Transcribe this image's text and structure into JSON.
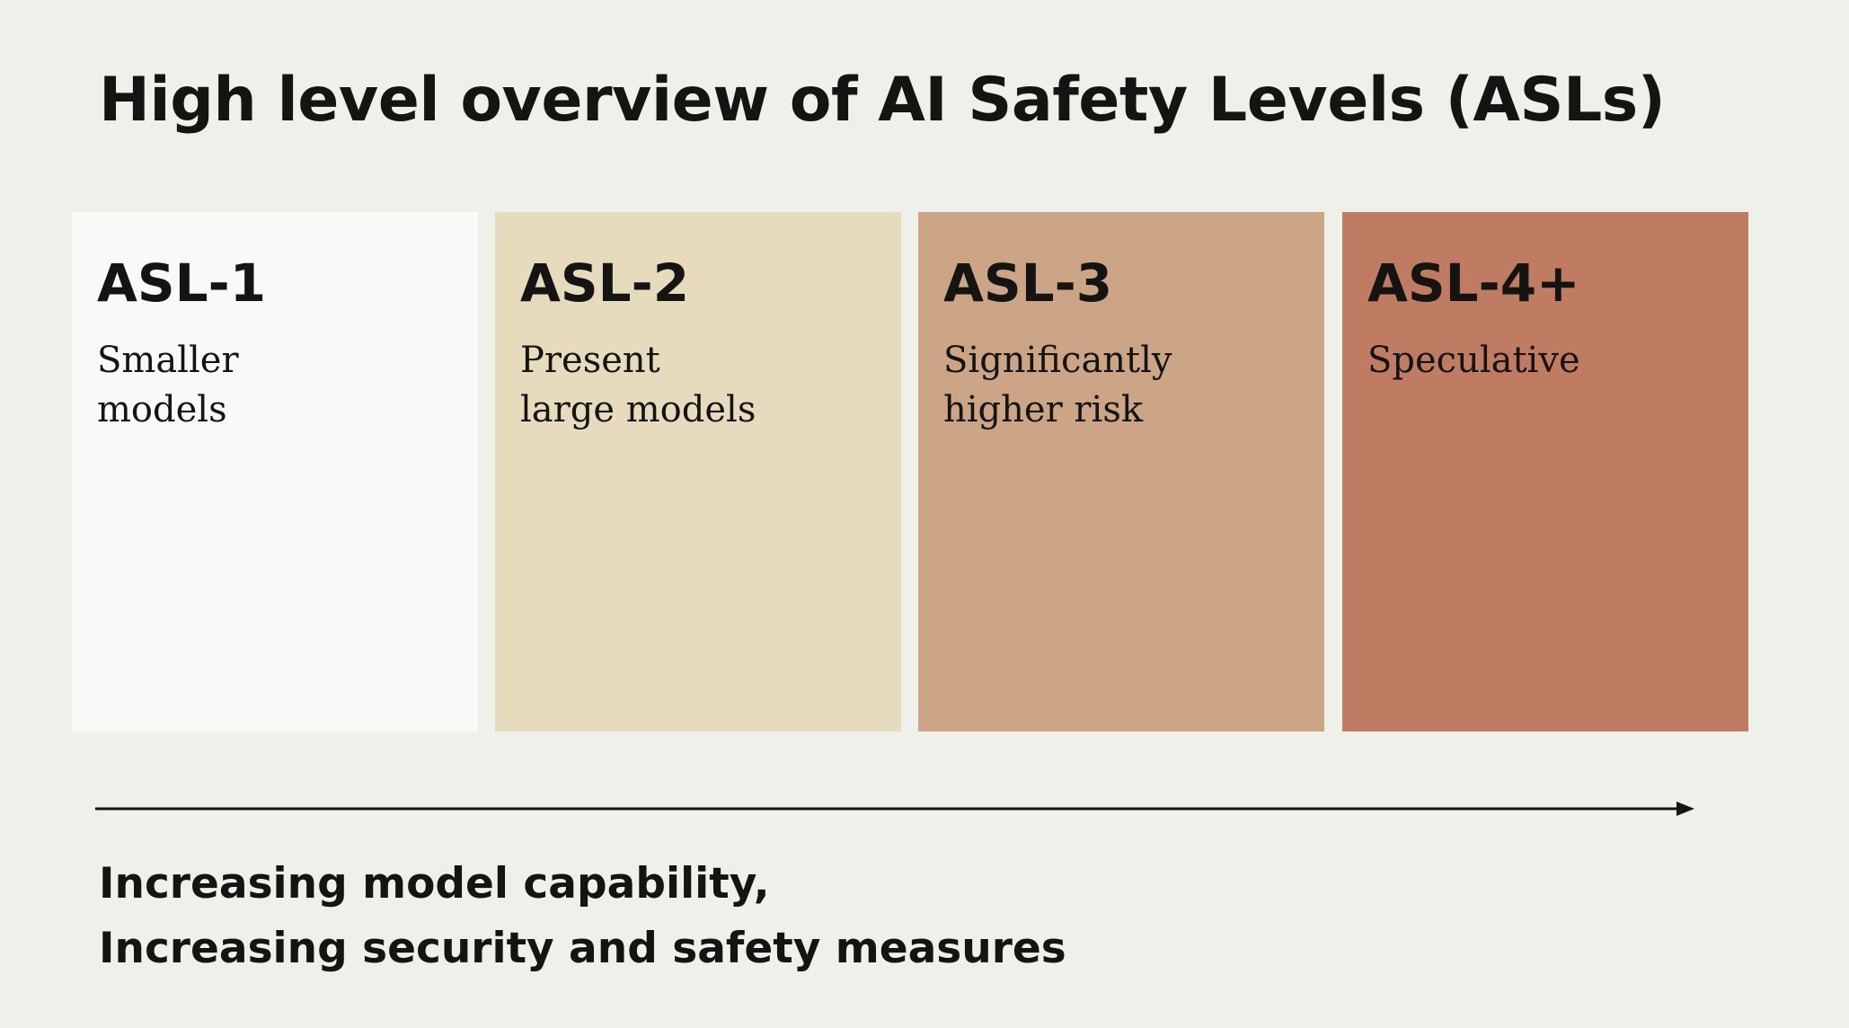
{
  "title": "High level overview of AI Safety Levels (ASLs)",
  "levels": [
    {
      "label": "ASL-1",
      "description": "Smaller\nmodels",
      "color": "#f9f9f7"
    },
    {
      "label": "ASL-2",
      "description": "Present\nlarge models",
      "color": "#e6dbbd"
    },
    {
      "label": "ASL-3",
      "description": "Significantly\nhigher risk",
      "color": "#cca486"
    },
    {
      "label": "ASL-4+",
      "description": "Speculative",
      "color": "#bf7c63"
    }
  ],
  "arrow_caption": {
    "line1": "Increasing model capability,",
    "line2": "Increasing security and safety measures"
  }
}
